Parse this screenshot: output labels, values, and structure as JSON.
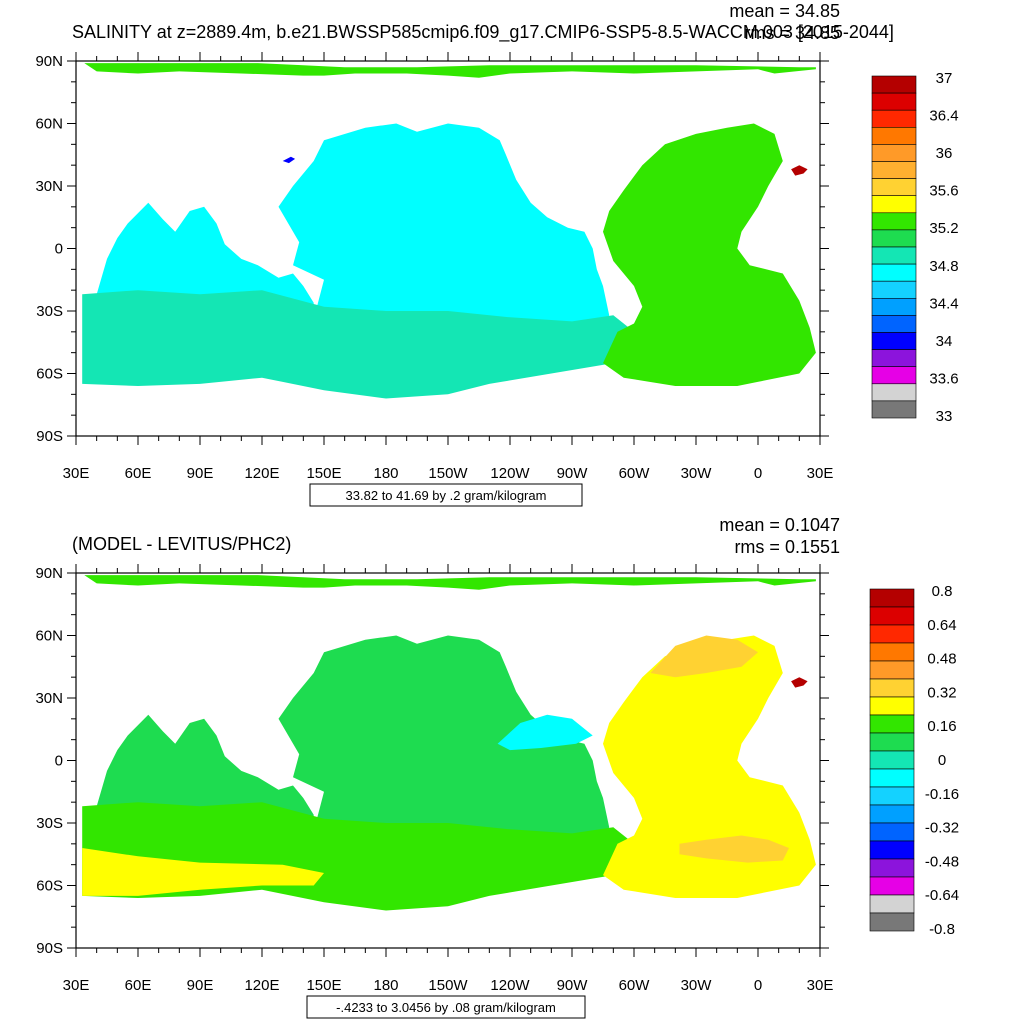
{
  "figure": {
    "land_color": "#ffffff",
    "lat_ticks": [
      "90N",
      "60N",
      "30N",
      "0",
      "30S",
      "60S",
      "90S"
    ],
    "lon_ticks": [
      "30E",
      "60E",
      "90E",
      "120E",
      "150E",
      "180",
      "150W",
      "120W",
      "90W",
      "60W",
      "30W",
      "0",
      "30E"
    ]
  },
  "chart_data": [
    {
      "type": "heatmap",
      "subtype": "filled-contour-map",
      "title": "SALINITY at z=2889.4m, b.e21.BWSSP585cmip6.f09_g17.CMIP6-SSP5-8.5-WACCM.003 [2015-2044]",
      "mean_label": "mean = 34.85",
      "rms_label": "rms = 34.85",
      "contour_info": "33.82 to 41.69 by .2 gram/kilogram",
      "x": {
        "ticks": [
          "30E",
          "60E",
          "90E",
          "120E",
          "150E",
          "180",
          "150W",
          "120W",
          "90W",
          "60W",
          "30W",
          "0",
          "30E"
        ],
        "range": [
          30,
          390
        ]
      },
      "y": {
        "ticks": [
          "90N",
          "60N",
          "30N",
          "0",
          "30S",
          "60S",
          "90S"
        ],
        "range": [
          90,
          -90
        ]
      },
      "colorbar": {
        "labels": [
          "37",
          "36.4",
          "36",
          "35.6",
          "35.2",
          "34.8",
          "34.4",
          "34",
          "33.6",
          "33"
        ],
        "colors": [
          "#b40000",
          "#dc0000",
          "#ff2800",
          "#ff7800",
          "#ff9a28",
          "#ffb030",
          "#ffd232",
          "#ffff00",
          "#32e600",
          "#1edc50",
          "#14e6b4",
          "#00ffff",
          "#14d2ff",
          "#00a0ff",
          "#0064ff",
          "#0000ff",
          "#8c14dc",
          "#e600e6",
          "#d3d3d3",
          "#787878"
        ]
      },
      "regions": [
        {
          "name": "Arctic strip",
          "color": "#32e600"
        },
        {
          "name": "Pacific",
          "color": "#00ffff"
        },
        {
          "name": "Indian",
          "color": "#00ffff"
        },
        {
          "name": "Southern Ocean",
          "color": "#14e6b4"
        },
        {
          "name": "Atlantic",
          "color": "#32e600"
        },
        {
          "name": "Mediterranean",
          "color": "#b40000"
        },
        {
          "name": "Japan Sea",
          "color": "#0000ff"
        }
      ]
    },
    {
      "type": "heatmap",
      "subtype": "filled-contour-map",
      "title": "(MODEL - LEVITUS/PHC2)",
      "mean_label": "mean = 0.1047",
      "rms_label": "rms = 0.1551",
      "contour_info": "-.4233 to 3.0456 by .08 gram/kilogram",
      "x": {
        "ticks": [
          "30E",
          "60E",
          "90E",
          "120E",
          "150E",
          "180",
          "150W",
          "120W",
          "90W",
          "60W",
          "30W",
          "0",
          "30E"
        ],
        "range": [
          30,
          390
        ]
      },
      "y": {
        "ticks": [
          "90N",
          "60N",
          "30N",
          "0",
          "30S",
          "60S",
          "90S"
        ],
        "range": [
          90,
          -90
        ]
      },
      "colorbar": {
        "labels": [
          "0.8",
          "0.64",
          "0.48",
          "0.32",
          "0.16",
          "0",
          "-0.16",
          "-0.32",
          "-0.48",
          "-0.64",
          "-0.8"
        ],
        "colors": [
          "#b40000",
          "#dc0000",
          "#ff2800",
          "#ff7800",
          "#ff9a28",
          "#ffd232",
          "#ffff00",
          "#32e600",
          "#1edc50",
          "#14e6b4",
          "#00ffff",
          "#14d2ff",
          "#00a0ff",
          "#0064ff",
          "#0000ff",
          "#8c14dc",
          "#e600e6",
          "#d3d3d3",
          "#787878"
        ]
      },
      "regions": [
        {
          "name": "Arctic strip",
          "color": "#32e600"
        },
        {
          "name": "Pacific",
          "color": "#1edc50"
        },
        {
          "name": "Indian",
          "color": "#1edc50"
        },
        {
          "name": "Southern Ocean",
          "color": "#32e600"
        },
        {
          "name": "Southern Ocean 60S belt",
          "color": "#ffff00"
        },
        {
          "name": "Atlantic",
          "color": "#ffff00"
        },
        {
          "name": "North Atlantic",
          "color": "#ffd232"
        },
        {
          "name": "Mediterranean",
          "color": "#b40000"
        },
        {
          "name": "NE Pacific",
          "color": "#00ffff"
        },
        {
          "name": "South Atlantic band",
          "color": "#ffd232"
        }
      ]
    }
  ]
}
